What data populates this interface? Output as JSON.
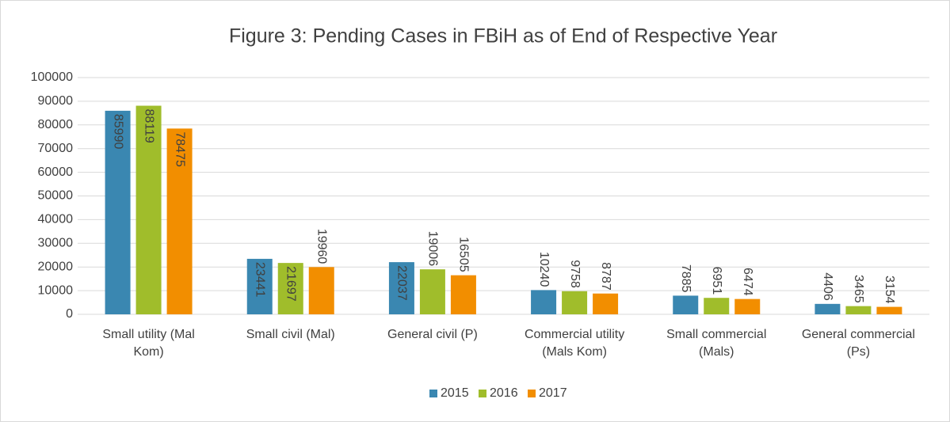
{
  "chart_data": {
    "type": "bar",
    "title": "Figure 3: Pending Cases in FBiH as of End of Respective Year",
    "categories": [
      "Small utility (Mal Kom)",
      "Small civil (Mal)",
      "General civil (P)",
      "Commercial utility (Mals Kom)",
      "Small commercial (Mals)",
      "General commercial (Ps)"
    ],
    "series": [
      {
        "name": "2015",
        "color": "#3a87b1",
        "values": [
          85990,
          23441,
          22037,
          10240,
          7885,
          4406
        ]
      },
      {
        "name": "2016",
        "color": "#a0bd2b",
        "values": [
          88119,
          21697,
          19006,
          9758,
          6951,
          3465
        ]
      },
      {
        "name": "2017",
        "color": "#f28e00",
        "values": [
          78475,
          19960,
          16505,
          8787,
          6474,
          3154
        ]
      }
    ],
    "ylim": [
      0,
      100000
    ],
    "yticks": [
      0,
      10000,
      20000,
      30000,
      40000,
      50000,
      60000,
      70000,
      80000,
      90000,
      100000
    ],
    "grid": true,
    "legend": "bottom"
  }
}
